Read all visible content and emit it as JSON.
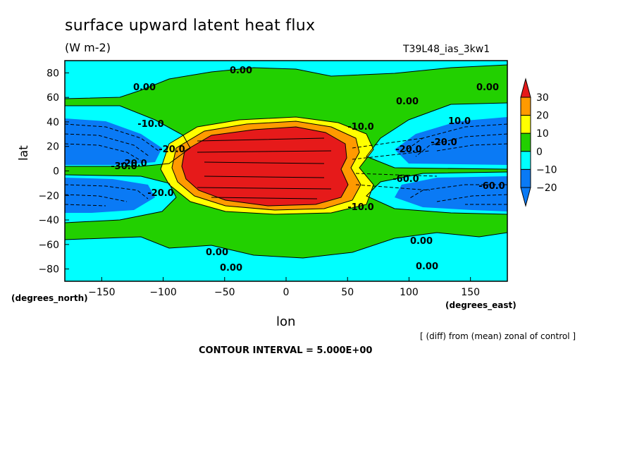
{
  "chart_data": {
    "type": "heatmap",
    "title": "surface upward latent heat flux",
    "units": "(W m-2)",
    "run_id": "T39L48_ias_3kw1",
    "xlabel": "lon",
    "ylabel": "lat",
    "xunits": "(degrees_east)",
    "yunits": "(degrees_north)",
    "xlim": [
      -180,
      180
    ],
    "ylim": [
      -90,
      90
    ],
    "xticks": [
      "-150",
      "-100",
      "-50",
      "0",
      "50",
      "100",
      "150"
    ],
    "yticks": [
      "80",
      "60",
      "40",
      "20",
      "0",
      "-20",
      "-40",
      "-60",
      "-80"
    ],
    "colorbar": {
      "levels": [
        "30",
        "20",
        "10",
        "0",
        "-10",
        "-20"
      ],
      "colors": [
        "#e61a1a",
        "#ff9a00",
        "#ffff00",
        "#22d000",
        "#00ffff",
        "#0a7af5"
      ]
    },
    "contour_labels": [
      "0.00",
      "0.00",
      "0.00",
      "0.00",
      "0.00",
      "0.00",
      "0.00",
      "0.00",
      "-10.0",
      "-10.0",
      "10.0",
      "-20.0",
      "-20.0",
      "-20.0",
      "-20.0",
      "-30.0",
      "-60.0",
      "-60.0",
      "-20.0",
      "-10.0"
    ],
    "note": "[ (diff) from (mean) zonal of control ]",
    "contour_interval": "CONTOUR INTERVAL = 5.000E+00"
  }
}
